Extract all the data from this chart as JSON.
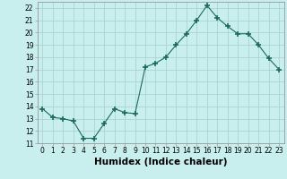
{
  "x": [
    0,
    1,
    2,
    3,
    4,
    5,
    6,
    7,
    8,
    9,
    10,
    11,
    12,
    13,
    14,
    15,
    16,
    17,
    18,
    19,
    20,
    21,
    22,
    23
  ],
  "y": [
    13.8,
    13.1,
    13.0,
    12.8,
    11.4,
    11.4,
    12.6,
    13.8,
    13.5,
    13.4,
    17.2,
    17.5,
    18.0,
    19.0,
    19.9,
    21.0,
    22.2,
    21.2,
    20.5,
    19.9,
    19.9,
    19.0,
    17.9,
    17.0
  ],
  "xlabel": "Humidex (Indice chaleur)",
  "ylim": [
    11,
    22.5
  ],
  "xlim": [
    -0.5,
    23.5
  ],
  "yticks": [
    11,
    12,
    13,
    14,
    15,
    16,
    17,
    18,
    19,
    20,
    21,
    22
  ],
  "xticks": [
    0,
    1,
    2,
    3,
    4,
    5,
    6,
    7,
    8,
    9,
    10,
    11,
    12,
    13,
    14,
    15,
    16,
    17,
    18,
    19,
    20,
    21,
    22,
    23
  ],
  "line_color": "#1a6b5a",
  "marker": "+",
  "marker_size": 4,
  "bg_color": "#c8eeee",
  "grid_color": "#aad4d4",
  "tick_label_fontsize": 5.5,
  "xlabel_fontsize": 7.5
}
